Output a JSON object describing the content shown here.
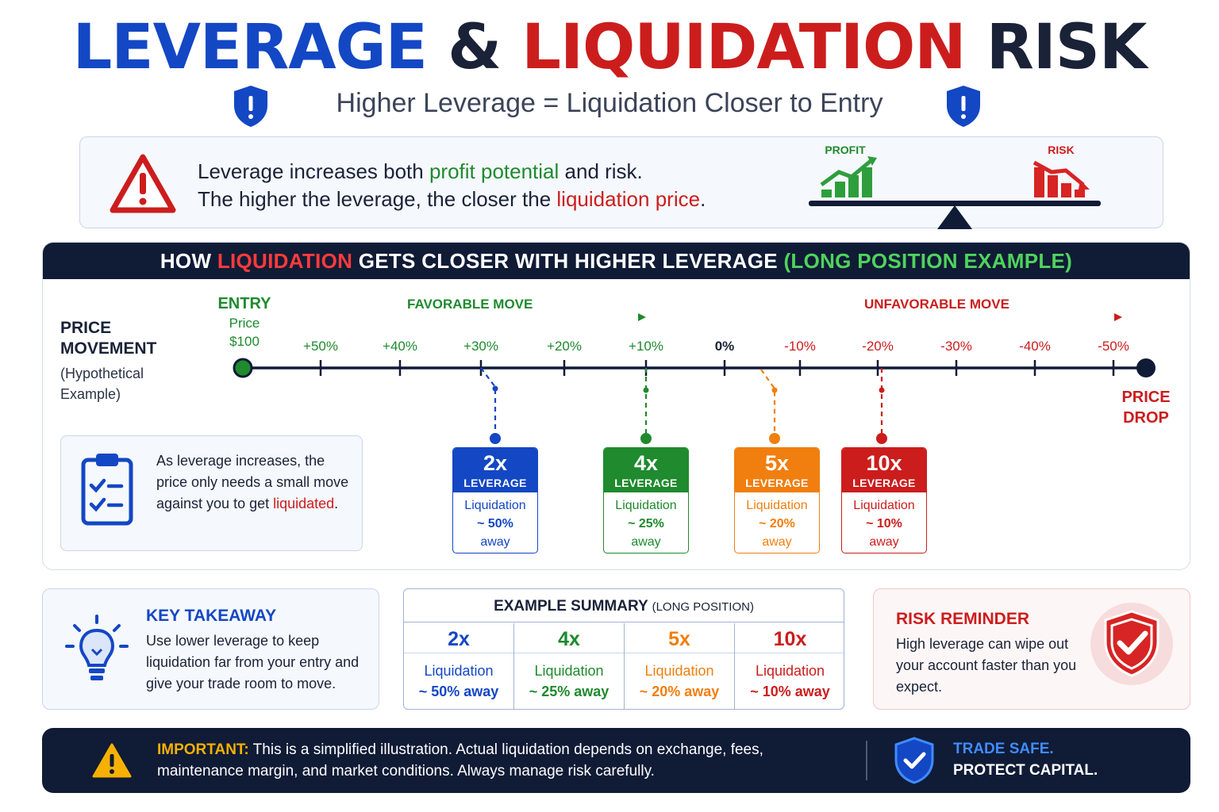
{
  "header": {
    "title_part1": "LEVERAGE",
    "title_amp": "&",
    "title_part2": "LIQUIDATION",
    "title_part3": "RISK",
    "subtitle": "Higher Leverage = Liquidation Closer to Entry"
  },
  "intro": {
    "line1_a": "Leverage increases both ",
    "line1_b": "profit potential",
    "line1_c": " and risk.",
    "line2_a": "The higher the leverage, the closer the ",
    "line2_b": "liquidation price",
    "line2_c": ".",
    "profit_label": "PROFIT",
    "risk_label": "RISK"
  },
  "panel": {
    "head_a": "HOW ",
    "head_b": "LIQUIDATION",
    "head_c": " GETS CLOSER WITH HIGHER LEVERAGE ",
    "head_d": "(LONG POSITION EXAMPLE)",
    "pm_line1": "PRICE",
    "pm_line2": "MOVEMENT",
    "pm_sub1": "(Hypothetical",
    "pm_sub2": "Example)",
    "entry_label": "ENTRY",
    "entry_sub1": "Price",
    "entry_sub2": "$100",
    "favorable": "FAVORABLE MOVE",
    "unfavorable": "UNFAVORABLE MOVE",
    "ticks": [
      "+50%",
      "+40%",
      "+30%",
      "+20%",
      "+10%",
      "0%",
      "-10%",
      "-20%",
      "-30%",
      "-40%",
      "-50%"
    ],
    "price_drop1": "PRICE",
    "price_drop2": "DROP",
    "note_a": "As leverage increases, the price only needs a small move against you to get ",
    "note_b": "liquidated",
    "note_c": ".",
    "cards": [
      {
        "x": "2x",
        "lev": "LEVERAGE",
        "l1": "Liquidation",
        "l2": "~ 50%",
        "l3": "away"
      },
      {
        "x": "4x",
        "lev": "LEVERAGE",
        "l1": "Liquidation",
        "l2": "~ 25%",
        "l3": "away"
      },
      {
        "x": "5x",
        "lev": "LEVERAGE",
        "l1": "Liquidation",
        "l2": "~ 20%",
        "l3": "away"
      },
      {
        "x": "10x",
        "lev": "LEVERAGE",
        "l1": "Liquidation",
        "l2": "~ 10%",
        "l3": "away"
      }
    ]
  },
  "takeaway": {
    "title": "KEY TAKEAWAY",
    "text": "Use lower leverage to keep liquidation far from your entry and give your trade room to move."
  },
  "summary": {
    "title": "EXAMPLE SUMMARY ",
    "title_small": "(LONG POSITION)",
    "cols": [
      {
        "x": "2x",
        "l1": "Liquidation",
        "l2": "~ 50% away"
      },
      {
        "x": "4x",
        "l1": "Liquidation",
        "l2": "~ 25% away"
      },
      {
        "x": "5x",
        "l1": "Liquidation",
        "l2": "~ 20% away"
      },
      {
        "x": "10x",
        "l1": "Liquidation",
        "l2": "~ 10% away"
      }
    ]
  },
  "risk": {
    "title": "RISK REMINDER",
    "text": "High leverage can wipe out your account faster than you expect."
  },
  "footer": {
    "important": "IMPORTANT:",
    "text": " This is a simplified illustration. Actual liquidation depends on exchange, fees, maintenance margin, and market conditions. Always manage risk carefully.",
    "right1": "TRADE SAFE.",
    "right2": "PROTECT CAPITAL."
  },
  "colors": {
    "blue": "#1347c4",
    "green": "#1f8a2e",
    "orange": "#f07f0f",
    "red": "#cc1d1d",
    "navy": "#101b36"
  }
}
